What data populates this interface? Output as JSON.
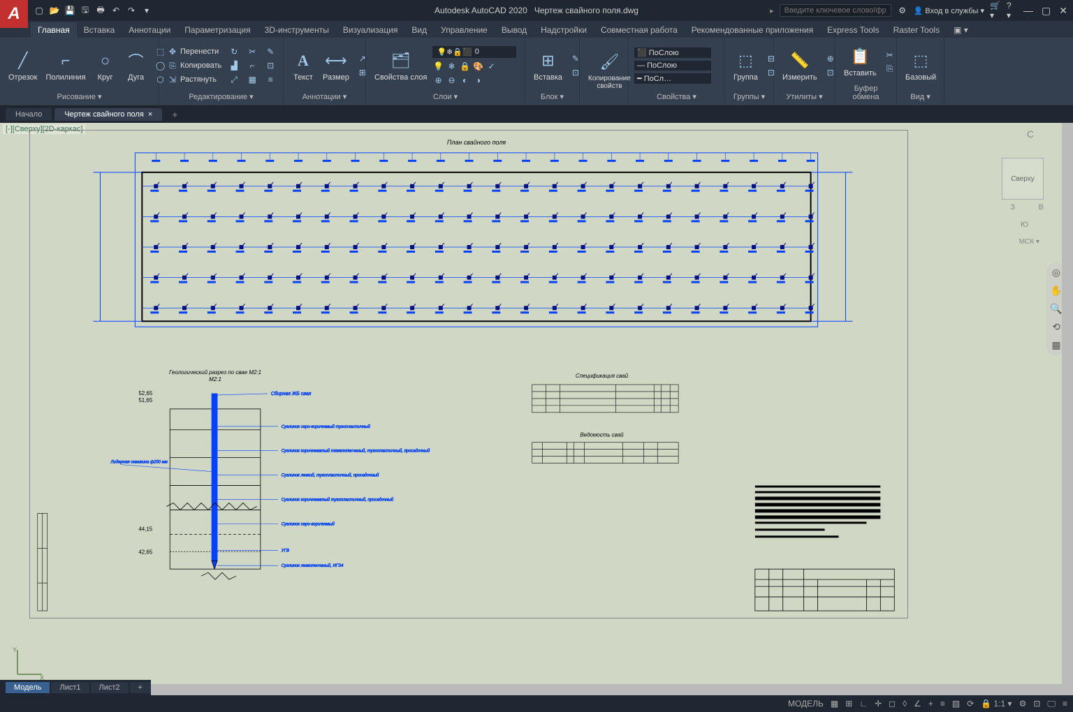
{
  "app": {
    "name": "Autodesk AutoCAD 2020",
    "document": "Чертеж свайного поля.dwg",
    "search_placeholder": "Введите ключевое слово/фразу",
    "login": "Вход в службы"
  },
  "menu": {
    "tabs": [
      "Главная",
      "Вставка",
      "Аннотации",
      "Параметризация",
      "3D-инструменты",
      "Визуализация",
      "Вид",
      "Управление",
      "Вывод",
      "Надстройки",
      "Совместная работа",
      "Рекомендованные приложения",
      "Express Tools",
      "Raster Tools"
    ],
    "active": 0
  },
  "ribbon": {
    "draw": {
      "title": "Рисование ▾",
      "line": "Отрезок",
      "polyline": "Полилиния",
      "circle": "Круг",
      "arc": "Дуга"
    },
    "modify": {
      "title": "Редактирование ▾",
      "move": "Перенести",
      "copy": "Копировать",
      "stretch": "Растянуть"
    },
    "annot": {
      "title": "Аннотации ▾",
      "text": "Текст",
      "dim": "Размер"
    },
    "layers": {
      "title": "Слои ▾",
      "props": "Свойства слоя",
      "current": "0"
    },
    "block": {
      "title": "Блок ▾",
      "insert": "Вставка"
    },
    "blockprops": {
      "title": "Копирование свойств"
    },
    "props": {
      "title": "Свойства ▾",
      "bylayer": "ПоСлою",
      "bylayer2": "ПоСлою",
      "bylayer3": "ПоСл…"
    },
    "groups": {
      "title": "Группы ▾",
      "group": "Группа"
    },
    "utils": {
      "title": "Утилиты ▾",
      "measure": "Измерить"
    },
    "clip": {
      "title": "Буфер обмена",
      "paste": "Вставить"
    },
    "view": {
      "title": "Вид ▾",
      "base": "Базовый"
    }
  },
  "doctabs": {
    "start": "Начало",
    "doc": "Чертеж свайного поля",
    "active": 1
  },
  "viewport": {
    "label": "[-][Сверху][2D-каркас]",
    "cube": "Сверху",
    "wcs": "МСК ▾"
  },
  "drawing": {
    "plan_title": "План свайного поля",
    "section_title": "Геологический разрез по свае М2:1",
    "spec_title": "Спецификация свай",
    "sched_title": "Ведомость свай",
    "pile_label": "Сборная ЖБ свая",
    "leader_label": "Лидерная скважина ф250 мм",
    "soil1": "Суглинок серо-коричневый тугопластичный",
    "soil2": "Суглинок коричневатый тяжелопесчаный, тугопластичный, просадочный",
    "soil3": "Суглинок легкий, тугопластичный, просадочный",
    "soil4": "Суглинок коричневатый тугопластичный, просадочный",
    "soil5": "Суглинок серо-коричневый",
    "soil6": "УГВ",
    "soil7": "Суглинок легкопесчаный, ИГЭ4",
    "elev1": "52,65",
    "elev1b": "51,65",
    "elev2": "44,15",
    "elev3": "42,65",
    "pile_count": 24,
    "pile_rows": 5,
    "colors": {
      "selection": "#0040ff",
      "selection_dark": "#001080",
      "paper": "#d0d8c5",
      "line": "#000"
    }
  },
  "layouts": {
    "tabs": [
      "Модель",
      "Лист1",
      "Лист2"
    ],
    "active": 0
  },
  "status": {
    "scale": "1:1",
    "items": [
      "МОДЕЛЬ",
      "#",
      "⊞",
      "▦",
      "∟"
    ]
  }
}
